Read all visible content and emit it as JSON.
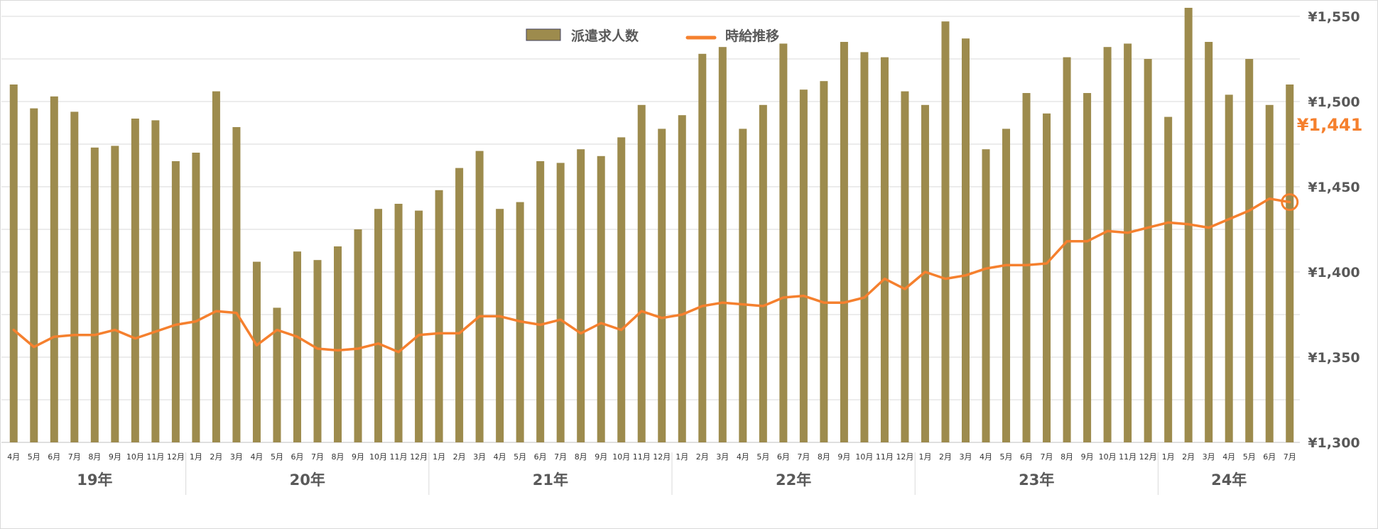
{
  "chart_data": {
    "type": "bar+line",
    "title": "",
    "y_axis_right": {
      "range": [
        1300,
        1550
      ],
      "ticks": [
        1300,
        1350,
        1400,
        1450,
        1500,
        1550
      ],
      "tick_labels": [
        "¥1,300",
        "¥1,350",
        "¥1,400",
        "¥1,450",
        "¥1,500",
        "¥1,550"
      ]
    },
    "gridlines": true,
    "legend": {
      "position": "top-center",
      "items": [
        {
          "name": "派遣求人数",
          "kind": "bar"
        },
        {
          "name": "時給推移",
          "kind": "line"
        }
      ]
    },
    "colors": {
      "bar": "#9d8b4d",
      "line": "#f5802e",
      "grid": "#d9d9d9",
      "axis_text": "#595959",
      "callout": "#f5802e"
    },
    "month_labels": [
      "4月",
      "5月",
      "6月",
      "7月",
      "8月",
      "9月",
      "10月",
      "11月",
      "12月",
      "1月",
      "2月",
      "3月",
      "4月",
      "5月",
      "6月",
      "7月",
      "8月",
      "9月",
      "10月",
      "11月",
      "12月",
      "1月",
      "2月",
      "3月",
      "4月",
      "5月",
      "6月",
      "7月",
      "8月",
      "9月",
      "10月",
      "11月",
      "12月",
      "1月",
      "2月",
      "3月",
      "4月",
      "5月",
      "6月",
      "7月",
      "8月",
      "9月",
      "10月",
      "11月",
      "12月",
      "1月",
      "2月",
      "3月",
      "4月",
      "5月",
      "6月",
      "7月",
      "8月",
      "9月",
      "10月",
      "11月",
      "12月",
      "1月",
      "2月",
      "3月",
      "4月",
      "5月",
      "6月",
      "7月"
    ],
    "year_groups": [
      {
        "label": "19年",
        "count": 9
      },
      {
        "label": "20年",
        "count": 12
      },
      {
        "label": "21年",
        "count": 12
      },
      {
        "label": "22年",
        "count": 12
      },
      {
        "label": "23年",
        "count": 12
      },
      {
        "label": "24年",
        "count": 7
      }
    ],
    "series": [
      {
        "name": "派遣求人数",
        "type": "bar",
        "axis_scale_note": "secondary axis (unlabeled); values plotted on right-axis scale",
        "values": [
          1510,
          1496,
          1503,
          1494,
          1473,
          1474,
          1490,
          1489,
          1465,
          1470,
          1506,
          1485,
          1406,
          1379,
          1412,
          1407,
          1415,
          1425,
          1437,
          1440,
          1436,
          1448,
          1461,
          1471,
          1437,
          1441,
          1465,
          1464,
          1472,
          1468,
          1479,
          1498,
          1484,
          1492,
          1528,
          1532,
          1484,
          1498,
          1534,
          1507,
          1512,
          1535,
          1529,
          1526,
          1506,
          1498,
          1547,
          1537,
          1472,
          1484,
          1505,
          1493,
          1526,
          1505,
          1532,
          1534,
          1525,
          1491,
          1555,
          1535,
          1504,
          1525,
          1498,
          1510
        ]
      },
      {
        "name": "時給推移",
        "type": "line",
        "values": [
          1366,
          1356,
          1362,
          1363,
          1363,
          1366,
          1361,
          1365,
          1369,
          1371,
          1377,
          1376,
          1357,
          1366,
          1362,
          1355,
          1354,
          1355,
          1358,
          1353,
          1363,
          1364,
          1364,
          1374,
          1374,
          1371,
          1369,
          1372,
          1364,
          1370,
          1366,
          1377,
          1373,
          1375,
          1380,
          1382,
          1381,
          1380,
          1385,
          1386,
          1382,
          1382,
          1385,
          1396,
          1390,
          1400,
          1396,
          1398,
          1402,
          1404,
          1404,
          1405,
          1418,
          1418,
          1424,
          1423,
          1426,
          1429,
          1428,
          1426,
          1431,
          1436,
          1443,
          1441
        ]
      }
    ],
    "annotation": {
      "text": "¥1,441",
      "target": "last point of 時給推移"
    }
  }
}
